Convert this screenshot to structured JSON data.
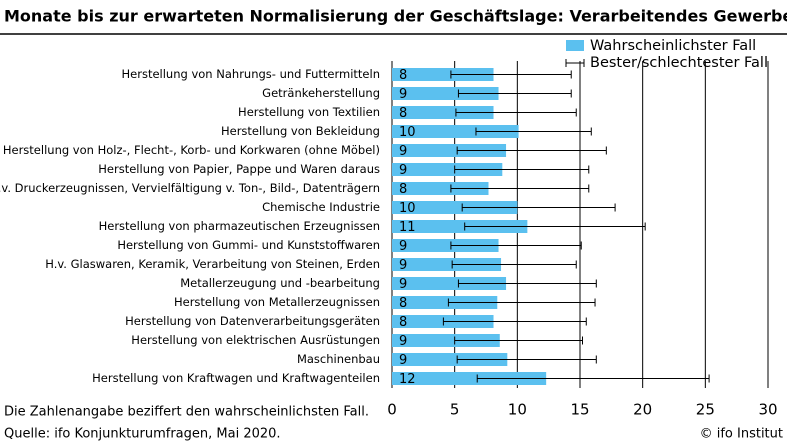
{
  "chart_data": {
    "type": "bar",
    "orientation": "horizontal",
    "title": "Monate bis zur erwarteten Normalisierung der Geschäftslage: Verarbeitendes Gewerbe",
    "categories": [
      "Herstellung von Nahrungs- und Futtermitteln",
      "Getränkeherstellung",
      "Herstellung von Textilien",
      "Herstellung von Bekleidung",
      "Herstellung von Holz-, Flecht-, Korb- und Korkwaren (ohne Möbel)",
      "Herstellung von Papier, Pappe und Waren daraus",
      "H.v. Druckerzeugnissen, Vervielfältigung v. Ton-, Bild-, Datenträgern",
      "Chemische Industrie",
      "Herstellung von pharmazeutischen Erzeugnissen",
      "Herstellung von Gummi- und Kunststoffwaren",
      "H.v. Glaswaren, Keramik, Verarbeitung von Steinen, Erden",
      "Metallerzeugung und -bearbeitung",
      "Herstellung von Metallerzeugnissen",
      "Herstellung von Datenverarbeitungsgeräten",
      "Herstellung von elektrischen Ausrüstungen",
      "Maschinenbau",
      "Herstellung von Kraftwagen und Kraftwagenteilen"
    ],
    "series": [
      {
        "name": "Wahrscheinlichster Fall",
        "color": "#5bc0ef",
        "values": [
          8.1,
          8.5,
          8.1,
          10.1,
          9.1,
          8.8,
          7.7,
          10.0,
          10.8,
          8.5,
          8.7,
          9.1,
          8.4,
          8.1,
          8.6,
          9.2,
          12.3
        ],
        "value_labels": [
          "8",
          "9",
          "8",
          "10",
          "9",
          "9",
          "8",
          "10",
          "11",
          "9",
          "9",
          "9",
          "8",
          "8",
          "9",
          "9",
          "12"
        ]
      },
      {
        "name": "Bester/schlechtester Fall",
        "color": "#000000",
        "low": [
          4.7,
          5.3,
          5.1,
          6.7,
          5.2,
          5.0,
          4.7,
          5.6,
          5.8,
          4.7,
          4.8,
          5.3,
          4.5,
          4.1,
          5.0,
          5.2,
          6.8
        ],
        "high": [
          14.3,
          14.3,
          14.7,
          15.9,
          17.1,
          15.7,
          15.7,
          17.8,
          20.2,
          15.1,
          14.7,
          16.3,
          16.2,
          15.5,
          15.2,
          16.3,
          25.3
        ]
      }
    ],
    "xlim": [
      0,
      30
    ],
    "xticks": [
      0,
      5,
      10,
      15,
      20,
      25,
      30
    ],
    "grid": true,
    "legend": "upper right",
    "notes": [
      "Die Zahlenangabe beziffert den wahrscheinlichsten Fall.",
      "Quelle: ifo Konjunkturumfragen, Mai 2020."
    ],
    "credit": "© ifo Institut"
  }
}
